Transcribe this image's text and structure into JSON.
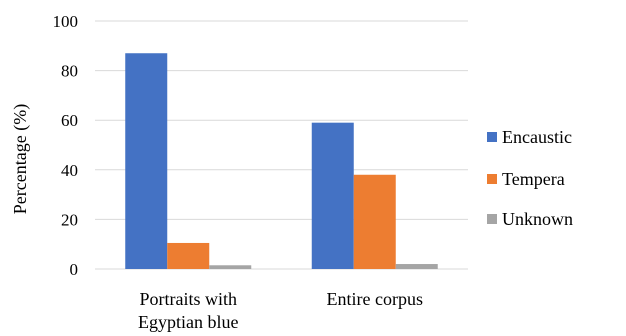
{
  "chart_data": {
    "type": "bar",
    "categories": [
      "Portraits with Egyptian blue",
      "Entire corpus"
    ],
    "category_lines": [
      [
        "Portraits with",
        "Egyptian blue"
      ],
      [
        "Entire corpus"
      ]
    ],
    "series": [
      {
        "name": "Encaustic",
        "values": [
          87,
          59
        ],
        "color": "#4472c4"
      },
      {
        "name": "Tempera",
        "values": [
          10.5,
          38
        ],
        "color": "#ed7d31"
      },
      {
        "name": "Unknown",
        "values": [
          1.5,
          2
        ],
        "color": "#a5a5a5"
      }
    ],
    "title": "",
    "xlabel": "",
    "ylabel": "Percentage (%)",
    "ylim": [
      0,
      100
    ],
    "yticks": [
      0,
      20,
      40,
      60,
      80,
      100
    ],
    "grid": true,
    "legend_position": "right"
  }
}
